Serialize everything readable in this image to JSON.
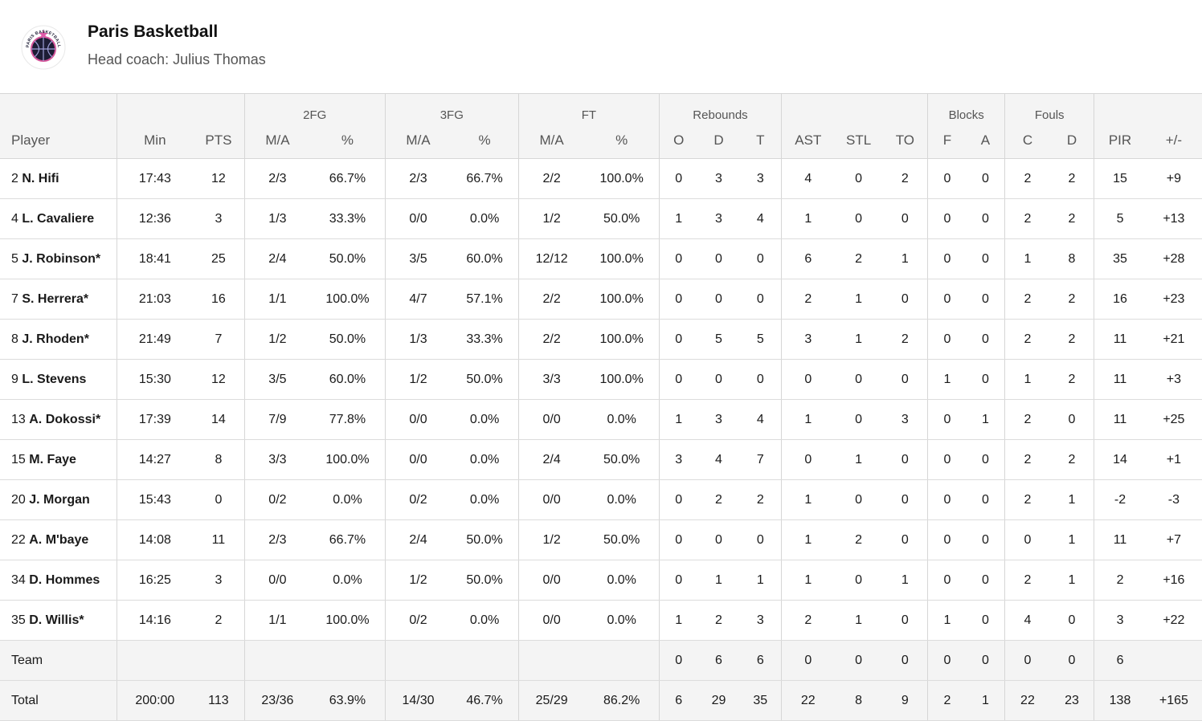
{
  "team": {
    "name": "Paris Basketball",
    "coach": "Head coach: Julius Thomas",
    "logo_icon": "paris-basketball-logo",
    "logo_text": "PARIS BASKETBALL"
  },
  "groups": {
    "fg2": "2FG",
    "fg3": "3FG",
    "ft": "FT",
    "rebounds": "Rebounds",
    "blocks": "Blocks",
    "fouls": "Fouls"
  },
  "columns": [
    "Player",
    "Min",
    "PTS",
    "M/A",
    "%",
    "M/A",
    "%",
    "M/A",
    "%",
    "O",
    "D",
    "T",
    "AST",
    "STL",
    "TO",
    "F",
    "A",
    "C",
    "D",
    "PIR",
    "+/-"
  ],
  "players": [
    {
      "num": "2",
      "name": "N. Hifi",
      "stats": [
        "17:43",
        "12",
        "2/3",
        "66.7%",
        "2/3",
        "66.7%",
        "2/2",
        "100.0%",
        "0",
        "3",
        "3",
        "4",
        "0",
        "2",
        "0",
        "0",
        "2",
        "2",
        "15",
        "+9"
      ]
    },
    {
      "num": "4",
      "name": "L. Cavaliere",
      "stats": [
        "12:36",
        "3",
        "1/3",
        "33.3%",
        "0/0",
        "0.0%",
        "1/2",
        "50.0%",
        "1",
        "3",
        "4",
        "1",
        "0",
        "0",
        "0",
        "0",
        "2",
        "2",
        "5",
        "+13"
      ]
    },
    {
      "num": "5",
      "name": "J. Robinson*",
      "stats": [
        "18:41",
        "25",
        "2/4",
        "50.0%",
        "3/5",
        "60.0%",
        "12/12",
        "100.0%",
        "0",
        "0",
        "0",
        "6",
        "2",
        "1",
        "0",
        "0",
        "1",
        "8",
        "35",
        "+28"
      ]
    },
    {
      "num": "7",
      "name": "S. Herrera*",
      "stats": [
        "21:03",
        "16",
        "1/1",
        "100.0%",
        "4/7",
        "57.1%",
        "2/2",
        "100.0%",
        "0",
        "0",
        "0",
        "2",
        "1",
        "0",
        "0",
        "0",
        "2",
        "2",
        "16",
        "+23"
      ]
    },
    {
      "num": "8",
      "name": "J. Rhoden*",
      "stats": [
        "21:49",
        "7",
        "1/2",
        "50.0%",
        "1/3",
        "33.3%",
        "2/2",
        "100.0%",
        "0",
        "5",
        "5",
        "3",
        "1",
        "2",
        "0",
        "0",
        "2",
        "2",
        "11",
        "+21"
      ]
    },
    {
      "num": "9",
      "name": "L. Stevens",
      "stats": [
        "15:30",
        "12",
        "3/5",
        "60.0%",
        "1/2",
        "50.0%",
        "3/3",
        "100.0%",
        "0",
        "0",
        "0",
        "0",
        "0",
        "0",
        "1",
        "0",
        "1",
        "2",
        "11",
        "+3"
      ]
    },
    {
      "num": "13",
      "name": "A. Dokossi*",
      "stats": [
        "17:39",
        "14",
        "7/9",
        "77.8%",
        "0/0",
        "0.0%",
        "0/0",
        "0.0%",
        "1",
        "3",
        "4",
        "1",
        "0",
        "3",
        "0",
        "1",
        "2",
        "0",
        "11",
        "+25"
      ]
    },
    {
      "num": "15",
      "name": "M. Faye",
      "stats": [
        "14:27",
        "8",
        "3/3",
        "100.0%",
        "0/0",
        "0.0%",
        "2/4",
        "50.0%",
        "3",
        "4",
        "7",
        "0",
        "1",
        "0",
        "0",
        "0",
        "2",
        "2",
        "14",
        "+1"
      ]
    },
    {
      "num": "20",
      "name": "J. Morgan",
      "stats": [
        "15:43",
        "0",
        "0/2",
        "0.0%",
        "0/2",
        "0.0%",
        "0/0",
        "0.0%",
        "0",
        "2",
        "2",
        "1",
        "0",
        "0",
        "0",
        "0",
        "2",
        "1",
        "-2",
        "-3"
      ]
    },
    {
      "num": "22",
      "name": "A. M'baye",
      "stats": [
        "14:08",
        "11",
        "2/3",
        "66.7%",
        "2/4",
        "50.0%",
        "1/2",
        "50.0%",
        "0",
        "0",
        "0",
        "1",
        "2",
        "0",
        "0",
        "0",
        "0",
        "1",
        "11",
        "+7"
      ]
    },
    {
      "num": "34",
      "name": "D. Hommes",
      "stats": [
        "16:25",
        "3",
        "0/0",
        "0.0%",
        "1/2",
        "50.0%",
        "0/0",
        "0.0%",
        "0",
        "1",
        "1",
        "1",
        "0",
        "1",
        "0",
        "0",
        "2",
        "1",
        "2",
        "+16"
      ]
    },
    {
      "num": "35",
      "name": "D. Willis*",
      "stats": [
        "14:16",
        "2",
        "1/1",
        "100.0%",
        "0/2",
        "0.0%",
        "0/0",
        "0.0%",
        "1",
        "2",
        "3",
        "2",
        "1",
        "0",
        "1",
        "0",
        "4",
        "0",
        "3",
        "+22"
      ]
    }
  ],
  "team_row": {
    "label": "Team",
    "stats": [
      "",
      "",
      "",
      "",
      "",
      "",
      "",
      "",
      "0",
      "6",
      "6",
      "0",
      "0",
      "0",
      "0",
      "0",
      "0",
      "0",
      "6",
      ""
    ]
  },
  "total_row": {
    "label": "Total",
    "stats": [
      "200:00",
      "113",
      "23/36",
      "63.9%",
      "14/30",
      "46.7%",
      "25/29",
      "86.2%",
      "6",
      "29",
      "35",
      "22",
      "8",
      "9",
      "2",
      "1",
      "22",
      "23",
      "138",
      "+165"
    ]
  }
}
